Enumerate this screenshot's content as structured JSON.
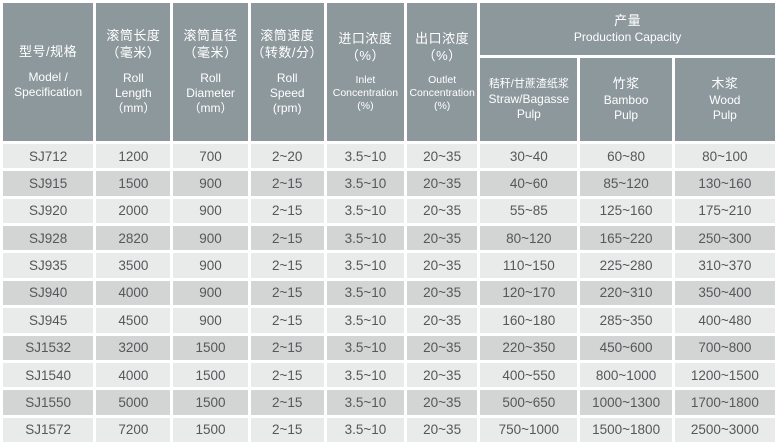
{
  "colors": {
    "header_bg": "#8d989d",
    "header_text": "#ffffff",
    "row_light": "#e9eaea",
    "row_dark": "#d3d4d4",
    "text": "#55575a",
    "gap": "#ffffff"
  },
  "chart_data": {
    "type": "table",
    "columns": [
      {
        "id": "model",
        "zh": [
          "型号/规格"
        ],
        "en": [
          "Model /",
          "Specification"
        ],
        "small": false
      },
      {
        "id": "roll-length",
        "zh": [
          "滚筒长度",
          "（毫米）"
        ],
        "en": [
          "Roll",
          "Length",
          "（mm）"
        ],
        "small": false
      },
      {
        "id": "roll-diameter",
        "zh": [
          "滚筒直径",
          "（毫米）"
        ],
        "en": [
          "Roll",
          "Diameter",
          "（mm）"
        ],
        "small": false
      },
      {
        "id": "roll-speed",
        "zh": [
          "滚筒速度",
          "（转数/分）"
        ],
        "en": [
          "Roll",
          "Speed",
          "(rpm)"
        ],
        "small": false
      },
      {
        "id": "inlet-concentration",
        "zh": [
          "进口浓度",
          "（%）"
        ],
        "en": [
          "Inlet",
          "Concentration",
          "(%)"
        ],
        "small": true
      },
      {
        "id": "outlet-concentration",
        "zh": [
          "出口浓度",
          "（%）"
        ],
        "en": [
          "Outlet",
          "Concentration",
          "(%)"
        ],
        "small": true
      }
    ],
    "capacity_header": {
      "id": "production-capacity",
      "zh": [
        "产量"
      ],
      "en": [
        "Production Capacity"
      ]
    },
    "capacity_columns": [
      {
        "id": "straw-bagasse-pulp",
        "zh": [
          "秸秆/甘蔗渣纸浆"
        ],
        "en": [
          "Straw/Bagasse",
          "Pulp"
        ],
        "zh_small": true
      },
      {
        "id": "bamboo-pulp",
        "zh": [
          "竹浆"
        ],
        "en": [
          "Bamboo",
          "Pulp"
        ],
        "zh_small": false
      },
      {
        "id": "wood-pulp",
        "zh": [
          "木浆"
        ],
        "en": [
          "Wood",
          "Pulp"
        ],
        "zh_small": false
      }
    ],
    "rows": [
      [
        "SJ712",
        "1200",
        "700",
        "2~20",
        "3.5~10",
        "20~35",
        "30~40",
        "60~80",
        "80~100"
      ],
      [
        "SJ915",
        "1500",
        "900",
        "2~15",
        "3.5~10",
        "20~35",
        "40~60",
        "85~120",
        "130~160"
      ],
      [
        "SJ920",
        "2000",
        "900",
        "2~15",
        "3.5~10",
        "20~35",
        "55~85",
        "125~160",
        "175~210"
      ],
      [
        "SJ928",
        "2820",
        "900",
        "2~15",
        "3.5~10",
        "20~35",
        "80~120",
        "165~220",
        "250~300"
      ],
      [
        "SJ935",
        "3500",
        "900",
        "2~15",
        "3.5~10",
        "20~35",
        "110~150",
        "225~280",
        "310~370"
      ],
      [
        "SJ940",
        "4000",
        "900",
        "2~15",
        "3.5~10",
        "20~35",
        "120~170",
        "220~310",
        "350~400"
      ],
      [
        "SJ945",
        "4500",
        "900",
        "2~15",
        "3.5~10",
        "20~35",
        "160~180",
        "285~350",
        "400~480"
      ],
      [
        "SJ1532",
        "3200",
        "1500",
        "2~15",
        "3.5~10",
        "20~35",
        "220~350",
        "450~600",
        "700~800"
      ],
      [
        "SJ1540",
        "4000",
        "1500",
        "2~15",
        "3.5~10",
        "20~35",
        "400~550",
        "800~1000",
        "1200~1500"
      ],
      [
        "SJ1550",
        "5000",
        "1500",
        "2~15",
        "3.5~10",
        "20~35",
        "500~650",
        "1000~1300",
        "1700~1800"
      ],
      [
        "SJ1572",
        "7200",
        "1500",
        "2~15",
        "3.5~10",
        "20~35",
        "750~1000",
        "1500~1800",
        "2500~3000"
      ]
    ]
  }
}
